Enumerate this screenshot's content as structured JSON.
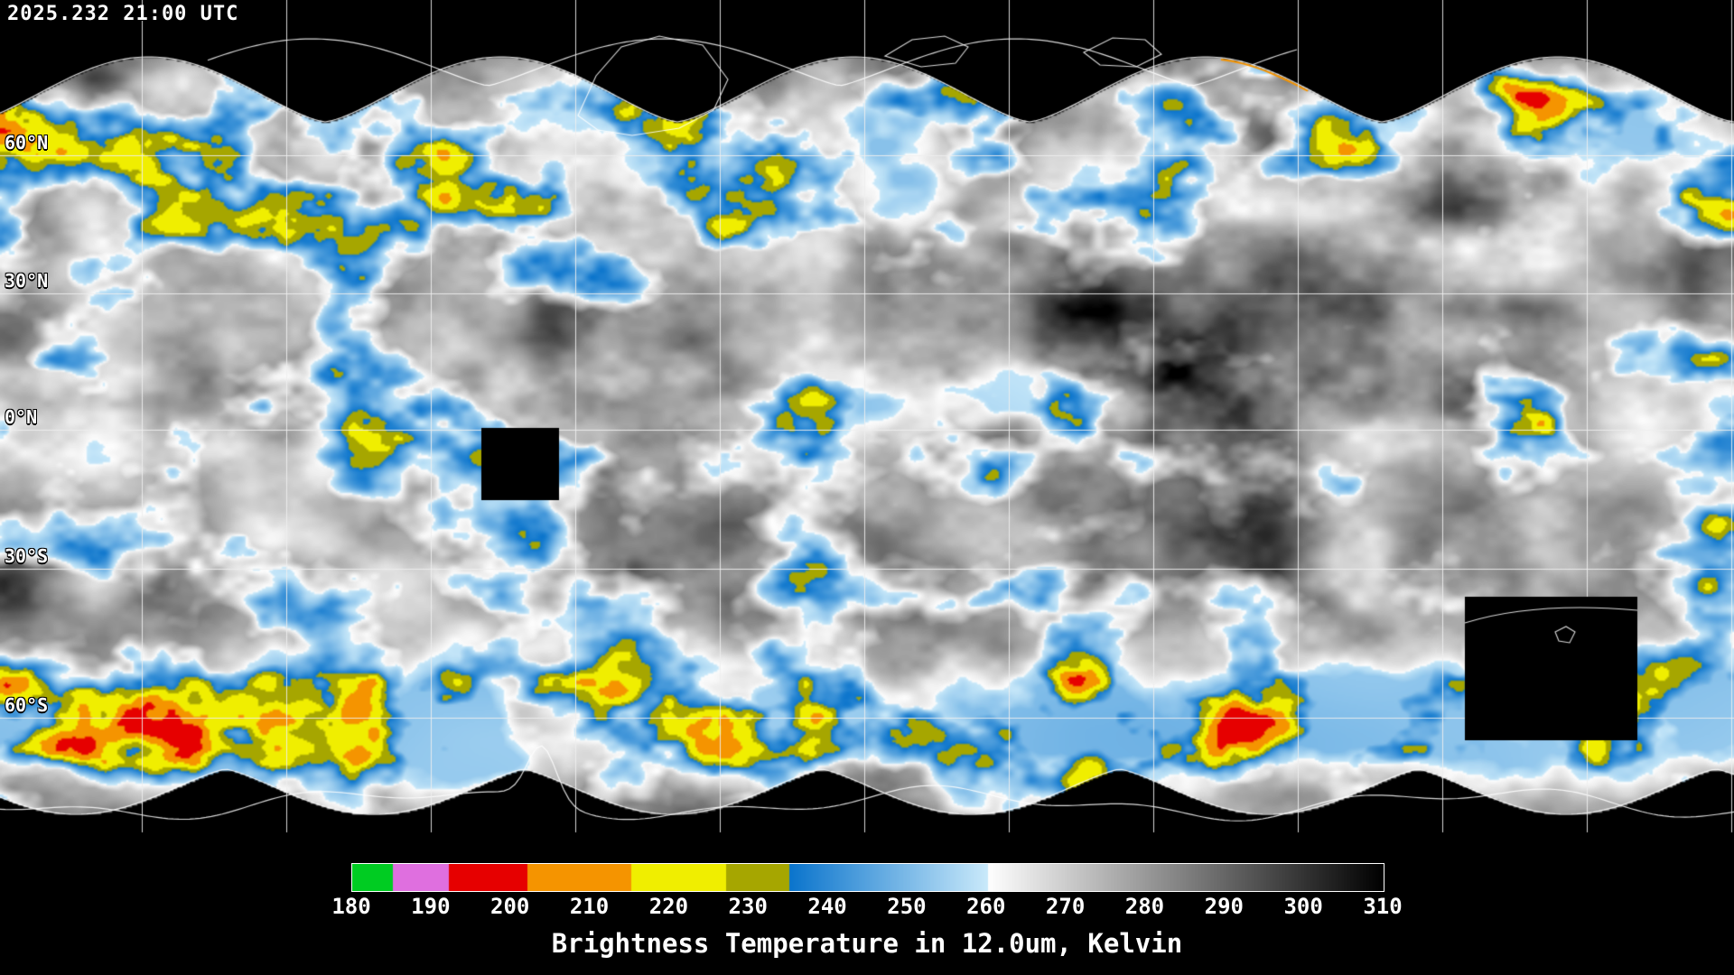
{
  "header": {
    "timestamp": "2025.232 21:00 UTC"
  },
  "map": {
    "latitude_labels": [
      "60°N",
      "30°N",
      "0°N",
      "30°S",
      "60°S"
    ],
    "longitude_gridline_spacing_deg": 30
  },
  "colorbar": {
    "title": "Brightness Temperature in 12.0um, Kelvin",
    "unit": "Kelvin",
    "min": 180,
    "max": 310,
    "ticks": [
      180,
      190,
      200,
      210,
      220,
      230,
      240,
      250,
      260,
      270,
      280,
      290,
      300,
      310
    ],
    "segments": [
      {
        "from": 180,
        "to": 185,
        "color": "#00cc22"
      },
      {
        "from": 185,
        "to": 192,
        "color": "#df6fdf"
      },
      {
        "from": 192,
        "to": 202,
        "color": "#e60000"
      },
      {
        "from": 202,
        "to": 215,
        "color": "#f59400"
      },
      {
        "from": 215,
        "to": 227,
        "color": "#f0ee00"
      },
      {
        "from": 227,
        "to": 235,
        "color": "#a6a600"
      },
      {
        "from": 235,
        "to": 260,
        "color_from": "#0a74cc",
        "color_to": "#c9e9fa"
      },
      {
        "from": 260,
        "to": 310,
        "color_from": "#ffffff",
        "color_to": "#000000"
      }
    ]
  }
}
